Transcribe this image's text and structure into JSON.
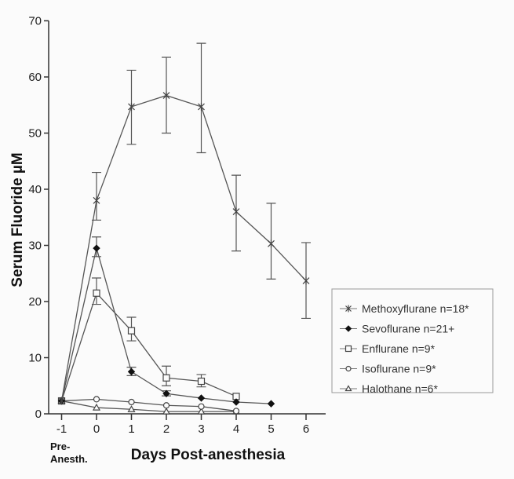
{
  "chart_data": {
    "type": "line",
    "title": "",
    "xlabel": "Days Post-anesthesia",
    "ylabel": "Serum Fluoride µM",
    "x_extra_label": "Pre-\nAnesth.",
    "x": [
      -1,
      0,
      1,
      2,
      3,
      4,
      5,
      6
    ],
    "x_ticks": [
      "-1",
      "0",
      "1",
      "2",
      "3",
      "4",
      "5",
      "6"
    ],
    "y_ticks": [
      "0",
      "10",
      "20",
      "30",
      "40",
      "50",
      "60",
      "70"
    ],
    "xlim": [
      -1,
      6
    ],
    "ylim": [
      0,
      70
    ],
    "grid": false,
    "legend_position": "right",
    "series": [
      {
        "name": "Methoxyflurane n=18*",
        "marker": "asterisk",
        "x": [
          -1,
          0,
          1,
          2,
          3,
          4,
          5,
          6
        ],
        "values": [
          2.3,
          38,
          54.7,
          56.7,
          54.7,
          36,
          30.3,
          23.7
        ],
        "err_low": [
          null,
          34.5,
          48,
          50,
          46.5,
          29,
          24,
          17
        ],
        "err_high": [
          null,
          43,
          61.2,
          63.5,
          66,
          42.5,
          37.5,
          30.5
        ]
      },
      {
        "name": "Sevoflurane n=21+",
        "marker": "diamond",
        "x": [
          -1,
          0,
          1,
          2,
          3,
          4,
          5
        ],
        "values": [
          2.3,
          29.5,
          7.5,
          3.6,
          2.8,
          2.1,
          1.8
        ],
        "err_low": [
          null,
          28,
          6.8,
          3.2,
          null,
          null,
          null
        ],
        "err_high": [
          null,
          31.5,
          8.3,
          4.1,
          null,
          null,
          null
        ]
      },
      {
        "name": "Enflurane n=9*",
        "marker": "square",
        "x": [
          -1,
          0,
          1,
          2,
          3,
          4
        ],
        "values": [
          2.3,
          21.5,
          14.8,
          6.4,
          5.8,
          3.1
        ],
        "err_low": [
          null,
          19.5,
          13,
          5,
          4.8,
          null
        ],
        "err_high": [
          null,
          24.2,
          17.2,
          8.5,
          7,
          null
        ]
      },
      {
        "name": "Isoflurane n=9*",
        "marker": "circle",
        "x": [
          -1,
          0,
          1,
          2,
          3,
          4
        ],
        "values": [
          2.3,
          2.6,
          2.1,
          1.5,
          1.3,
          0.5
        ]
      },
      {
        "name": "Halothane n=6*",
        "marker": "triangle",
        "x": [
          -1,
          0,
          1,
          2,
          3,
          4
        ],
        "values": [
          2.3,
          1.1,
          0.8,
          0.4,
          0.4,
          0.4
        ]
      }
    ]
  }
}
